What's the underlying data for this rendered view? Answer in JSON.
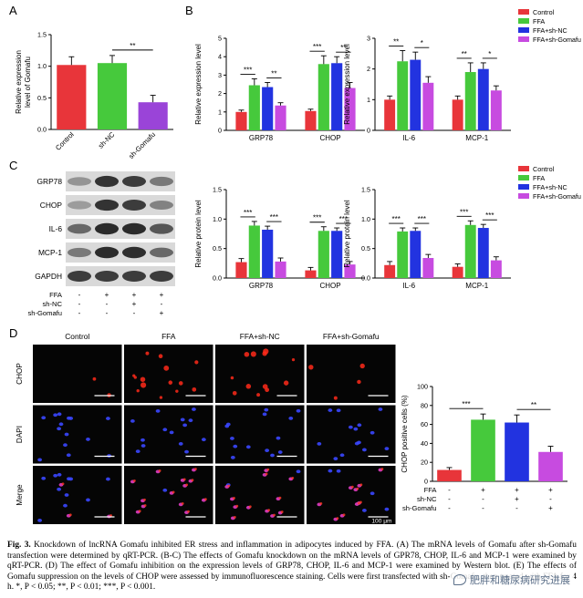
{
  "chart_data": [
    {
      "type": "bar",
      "panel": "A",
      "ylabel": "Relative expression level of Gomafu",
      "categories": [
        "Control",
        "sh-NC",
        "sh-Gomafu"
      ],
      "values": [
        1.02,
        1.05,
        0.43
      ],
      "errors": [
        0.13,
        0.12,
        0.11
      ],
      "colors": [
        "#e8353a",
        "#46c93c",
        "#9a44d8"
      ],
      "ylim": [
        0,
        1.5
      ],
      "yticks": [
        0,
        0.5,
        1.0,
        1.5
      ],
      "significance": [
        {
          "from": 1,
          "to": 2,
          "label": "**"
        }
      ]
    },
    {
      "type": "bar",
      "panel": "B",
      "ylabel": "Relative expression level",
      "categories": [
        "GRP78",
        "CHOP"
      ],
      "series": [
        {
          "name": "Control",
          "values": [
            1.0,
            1.05
          ],
          "errors": [
            0.1,
            0.1
          ]
        },
        {
          "name": "FFA",
          "values": [
            2.45,
            3.6
          ],
          "errors": [
            0.35,
            0.45
          ]
        },
        {
          "name": "FFA+sh-NC",
          "values": [
            2.35,
            3.65
          ],
          "errors": [
            0.25,
            0.35
          ]
        },
        {
          "name": "FFA+sh-Gomafu",
          "values": [
            1.35,
            2.3
          ],
          "errors": [
            0.15,
            0.3
          ]
        }
      ],
      "ylim": [
        0,
        5
      ],
      "yticks": [
        0,
        1,
        2,
        3,
        4,
        5
      ],
      "significance": [
        {
          "group": 0,
          "from": 0,
          "to": 1,
          "label": "***"
        },
        {
          "group": 0,
          "from": 2,
          "to": 3,
          "label": "**"
        },
        {
          "group": 1,
          "from": 0,
          "to": 1,
          "label": "***"
        },
        {
          "group": 1,
          "from": 2,
          "to": 3,
          "label": "**"
        }
      ]
    },
    {
      "type": "bar",
      "panel": "B",
      "ylabel": "Relative expression level",
      "categories": [
        "IL-6",
        "MCP-1"
      ],
      "series": [
        {
          "name": "Control",
          "values": [
            1.0,
            1.0
          ],
          "errors": [
            0.12,
            0.12
          ]
        },
        {
          "name": "FFA",
          "values": [
            2.25,
            1.9
          ],
          "errors": [
            0.35,
            0.3
          ]
        },
        {
          "name": "FFA+sh-NC",
          "values": [
            2.3,
            2.0
          ],
          "errors": [
            0.25,
            0.2
          ]
        },
        {
          "name": "FFA+sh-Gomafu",
          "values": [
            1.55,
            1.3
          ],
          "errors": [
            0.2,
            0.15
          ]
        }
      ],
      "ylim": [
        0,
        3
      ],
      "yticks": [
        0,
        1,
        2,
        3
      ],
      "significance": [
        {
          "group": 0,
          "from": 0,
          "to": 1,
          "label": "**"
        },
        {
          "group": 0,
          "from": 2,
          "to": 3,
          "label": "*"
        },
        {
          "group": 1,
          "from": 0,
          "to": 1,
          "label": "**"
        },
        {
          "group": 1,
          "from": 2,
          "to": 3,
          "label": "*"
        }
      ]
    },
    {
      "type": "bar",
      "panel": "C",
      "ylabel": "Relative protein level",
      "categories": [
        "GRP78",
        "CHOP"
      ],
      "series": [
        {
          "name": "Control",
          "values": [
            0.27,
            0.13
          ],
          "errors": [
            0.06,
            0.05
          ]
        },
        {
          "name": "FFA",
          "values": [
            0.89,
            0.8
          ],
          "errors": [
            0.07,
            0.07
          ]
        },
        {
          "name": "FFA+sh-NC",
          "values": [
            0.82,
            0.8
          ],
          "errors": [
            0.06,
            0.05
          ]
        },
        {
          "name": "FFA+sh-Gomafu",
          "values": [
            0.28,
            0.23
          ],
          "errors": [
            0.06,
            0.05
          ]
        }
      ],
      "ylim": [
        0,
        1.5
      ],
      "yticks": [
        0,
        0.5,
        1.0,
        1.5
      ],
      "significance": [
        {
          "group": 0,
          "from": 0,
          "to": 1,
          "label": "***"
        },
        {
          "group": 0,
          "from": 2,
          "to": 3,
          "label": "***"
        },
        {
          "group": 1,
          "from": 0,
          "to": 1,
          "label": "***"
        },
        {
          "group": 1,
          "from": 2,
          "to": 3,
          "label": "***"
        }
      ]
    },
    {
      "type": "bar",
      "panel": "C",
      "ylabel": "Relative protein level",
      "categories": [
        "IL-6",
        "MCP-1"
      ],
      "series": [
        {
          "name": "Control",
          "values": [
            0.22,
            0.19
          ],
          "errors": [
            0.06,
            0.05
          ]
        },
        {
          "name": "FFA",
          "values": [
            0.79,
            0.9
          ],
          "errors": [
            0.06,
            0.07
          ]
        },
        {
          "name": "FFA+sh-NC",
          "values": [
            0.8,
            0.85
          ],
          "errors": [
            0.05,
            0.06
          ]
        },
        {
          "name": "FFA+sh-Gomafu",
          "values": [
            0.34,
            0.3
          ],
          "errors": [
            0.06,
            0.06
          ]
        }
      ],
      "ylim": [
        0,
        1.5
      ],
      "yticks": [
        0,
        0.5,
        1.0,
        1.5
      ],
      "significance": [
        {
          "group": 0,
          "from": 0,
          "to": 1,
          "label": "***"
        },
        {
          "group": 0,
          "from": 2,
          "to": 3,
          "label": "***"
        },
        {
          "group": 1,
          "from": 0,
          "to": 1,
          "label": "***"
        },
        {
          "group": 1,
          "from": 2,
          "to": 3,
          "label": "***"
        }
      ]
    },
    {
      "type": "bar",
      "panel": "D",
      "ylabel": "CHOP positive cells (%)",
      "categories": [
        "Control",
        "FFA",
        "FFA+sh-NC",
        "FFA+sh-Gomafu"
      ],
      "values": [
        12,
        65,
        62,
        31
      ],
      "errors": [
        2.5,
        6,
        8,
        6
      ],
      "colors": [
        "#e8353a",
        "#46c93c",
        "#2233e0",
        "#c74be0"
      ],
      "ylim": [
        0,
        100
      ],
      "yticks": [
        0,
        20,
        40,
        60,
        80,
        100
      ],
      "significance": [
        {
          "from": 0,
          "to": 1,
          "label": "***"
        },
        {
          "from": 2,
          "to": 3,
          "label": "**"
        }
      ]
    }
  ],
  "panel_letters": [
    "A",
    "B",
    "C",
    "D"
  ],
  "series_colors": [
    "#e8353a",
    "#46c93c",
    "#2233e0",
    "#c74be0"
  ],
  "legend": [
    "Control",
    "FFA",
    "FFA+sh-NC",
    "FFA+sh-Gomafu"
  ],
  "western_blot": {
    "bands": [
      "GRP78",
      "CHOP",
      "IL-6",
      "MCP-1",
      "GAPDH"
    ],
    "lane_intensity": [
      [
        0.3,
        0.85,
        0.8,
        0.45
      ],
      [
        0.25,
        0.85,
        0.8,
        0.4
      ],
      [
        0.55,
        0.9,
        0.9,
        0.65
      ],
      [
        0.45,
        0.9,
        0.88,
        0.55
      ],
      [
        0.8,
        0.8,
        0.8,
        0.8
      ]
    ],
    "treatments": [
      {
        "label": "FFA",
        "marks": [
          "-",
          "+",
          "+",
          "+"
        ]
      },
      {
        "label": "sh-NC",
        "marks": [
          "-",
          "-",
          "+",
          "-"
        ]
      },
      {
        "label": "sh-Gomafu",
        "marks": [
          "-",
          "-",
          "-",
          "+"
        ]
      }
    ]
  },
  "if_panel": {
    "columns": [
      "Control",
      "FFA",
      "FFA+sh-NC",
      "FFA+sh-Gomafu"
    ],
    "rows": [
      "CHOP",
      "DAPI",
      "Merge"
    ],
    "scale_bar": "100 μm",
    "treatments": [
      {
        "label": "FFA",
        "marks": [
          "-",
          "+",
          "+",
          "+"
        ]
      },
      {
        "label": "sh-NC",
        "marks": [
          "-",
          "-",
          "+",
          "-"
        ]
      },
      {
        "label": "sh-Gomafu",
        "marks": [
          "-",
          "-",
          "-",
          "+"
        ]
      }
    ]
  },
  "caption": {
    "fig": "Fig. 3.",
    "text": " Knockdown of lncRNA Gomafu inhibited ER stress and inflammation in adipocytes induced by FFA. (A) The mRNA levels of Gomafu after sh-Gomafu transfection were determined by qRT-PCR. (B-C) The effects of Gomafu knockdown on the mRNA levels of GPR78, CHOP, IL-6 and MCP-1 were examined by qRT-PCR. (D) The effect of Gomafu inhibition on the expression levels of GRP78, CHOP, IL-6 and MCP-1 were examined by Western blot. (E) The effects of Gomafu suppression on the levels of CHOP were assessed by immunofluorescence staining. Cells were first transfected with sh-Gomafu, then treated with FFA for 4 h. *, P < 0.05; **, P < 0.01; ***, P < 0.001."
  },
  "watermark": "肥胖和糖尿病研究进展"
}
